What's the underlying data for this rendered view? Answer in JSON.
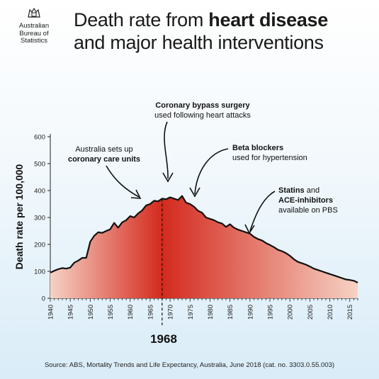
{
  "logo": {
    "line1": "Australian",
    "line2": "Bureau of",
    "line3": "Statistics",
    "icon": "coat-of-arms-icon"
  },
  "title": {
    "part1": "Death rate from ",
    "bold": "heart disease",
    "line2": "and major health interventions"
  },
  "source": "Source: ABS, Mortality Trends and Life Expectancy, Australia, June 2018 (cat. no. 3303.0.55.003)",
  "annotations": {
    "bypass_line1": "Coronary bypass surgery",
    "bypass_line2": "used following heart attacks",
    "ccu_line1": "Australia sets up",
    "ccu_line2": "coronary care units",
    "beta_line1": "Beta blockers",
    "beta_line2": "used for hypertension",
    "statins_line1_bold": "Statins",
    "statins_line1_rest": " and",
    "statins_line2": "ACE-inhibitors",
    "statins_line3": "available on PBS",
    "highlight_year": "1968"
  },
  "chart_data": {
    "type": "area",
    "ylabel": "Death rate per 100,000",
    "xlabel": "",
    "ylim": [
      0,
      600
    ],
    "yticks": [
      0,
      100,
      200,
      300,
      400,
      500,
      600
    ],
    "xlim": [
      1940,
      2017
    ],
    "xticks": [
      1940,
      1945,
      1950,
      1955,
      1960,
      1965,
      1970,
      1975,
      1980,
      1985,
      1990,
      1995,
      2000,
      2005,
      2010,
      2015
    ],
    "highlight_x": 1968,
    "colors": {
      "peak": "#d42a1e",
      "edge": "#f6d2c4",
      "line": "#111111"
    },
    "series": [
      {
        "x": [
          1940,
          1941,
          1942,
          1943,
          1944,
          1945,
          1946,
          1947,
          1948,
          1949,
          1950,
          1951,
          1952,
          1953,
          1954,
          1955,
          1956,
          1957,
          1958,
          1959,
          1960,
          1961,
          1962,
          1963,
          1964,
          1965,
          1966,
          1967,
          1968,
          1969,
          1970,
          1971,
          1972,
          1973,
          1974,
          1975,
          1976,
          1977,
          1978,
          1979,
          1980,
          1981,
          1982,
          1983,
          1984,
          1985,
          1986,
          1987,
          1988,
          1989,
          1990,
          1991,
          1992,
          1993,
          1994,
          1995,
          1996,
          1997,
          1998,
          1999,
          2000,
          2001,
          2002,
          2003,
          2004,
          2005,
          2006,
          2007,
          2008,
          2009,
          2010,
          2011,
          2012,
          2013,
          2014,
          2015,
          2016,
          2017
        ],
        "values": [
          95,
          102,
          108,
          112,
          110,
          114,
          132,
          140,
          150,
          150,
          210,
          232,
          245,
          243,
          250,
          256,
          280,
          262,
          282,
          290,
          305,
          300,
          315,
          326,
          345,
          350,
          362,
          360,
          370,
          368,
          375,
          370,
          365,
          380,
          355,
          350,
          340,
          325,
          318,
          300,
          295,
          290,
          282,
          278,
          265,
          275,
          262,
          255,
          250,
          245,
          240,
          228,
          220,
          215,
          205,
          198,
          190,
          180,
          175,
          168,
          158,
          145,
          135,
          130,
          125,
          118,
          110,
          105,
          100,
          95,
          90,
          85,
          80,
          75,
          70,
          68,
          65,
          58
        ]
      }
    ]
  }
}
